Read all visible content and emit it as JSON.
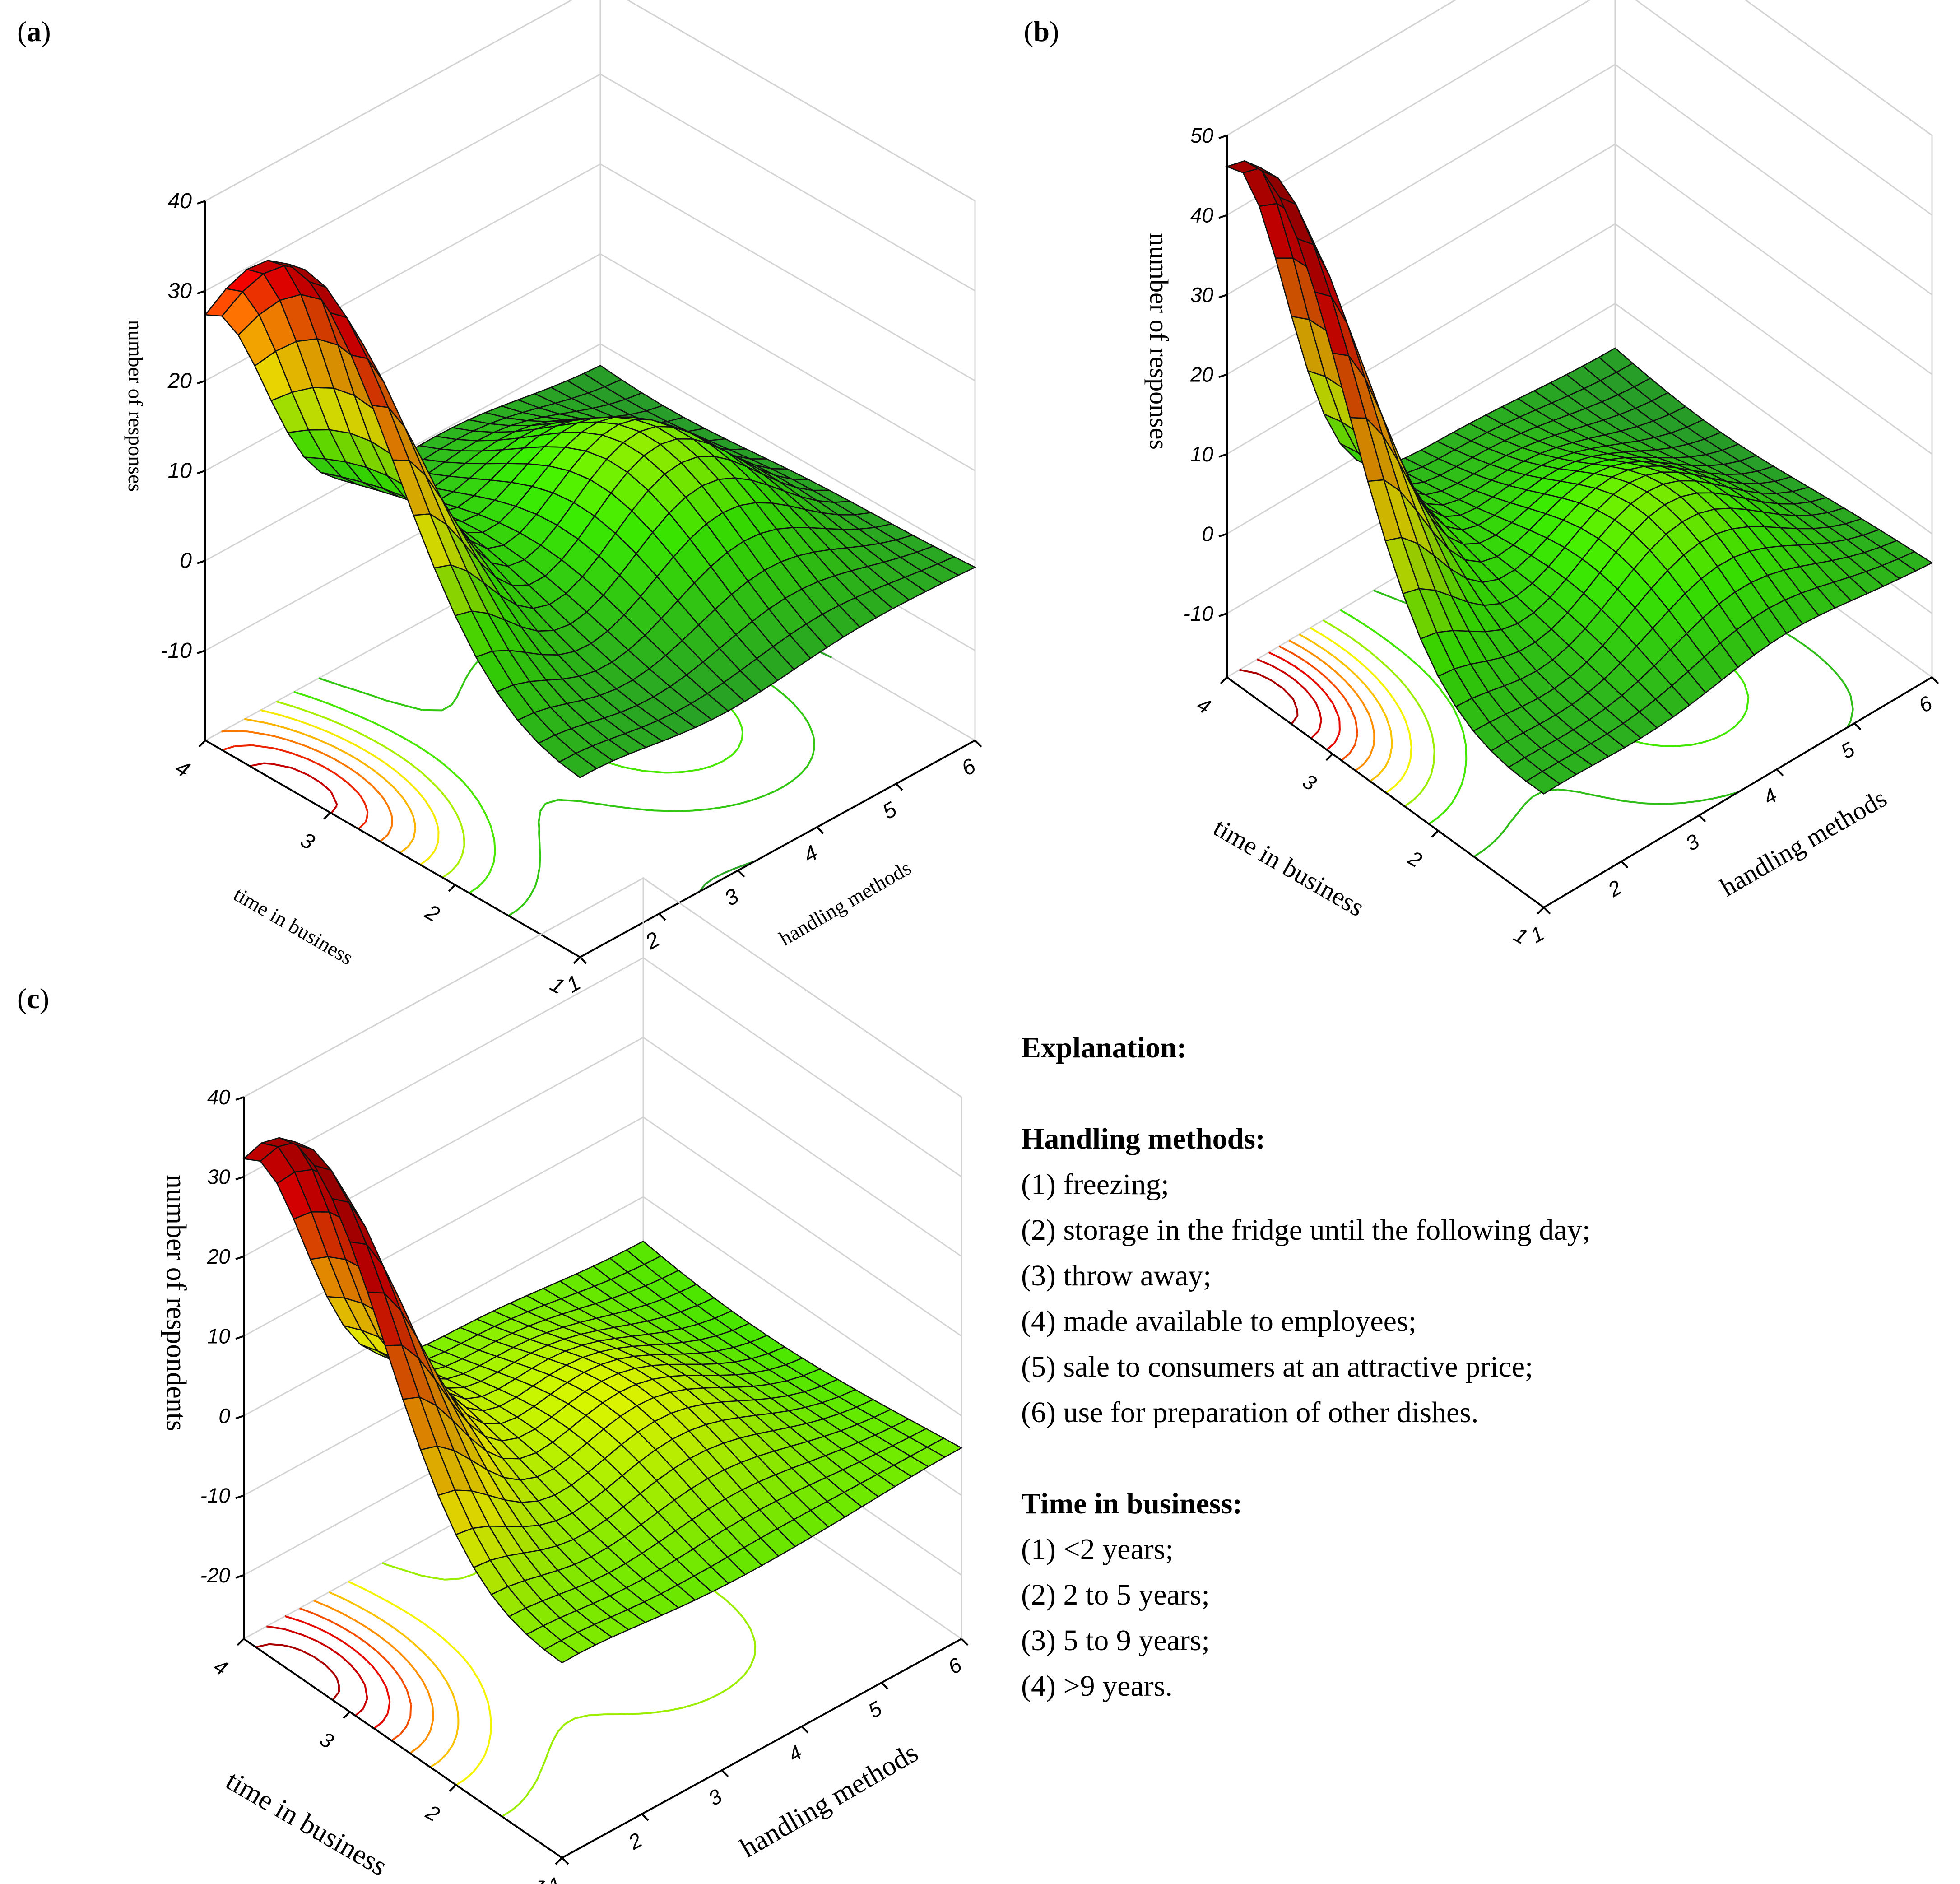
{
  "panels": [
    {
      "id": "a",
      "label_open": "(",
      "label_letter": "a",
      "label_close": ")",
      "chart_data": {
        "type": "surface3d",
        "title": "",
        "x_label": "handling methods",
        "y_label": "time in business",
        "z_label": "number of responses",
        "x_ticks": [
          "1",
          "2",
          "3",
          "4",
          "5",
          "6"
        ],
        "y_ticks": [
          "1",
          "2",
          "3",
          "4"
        ],
        "z_ticks": [
          "-10",
          "0",
          "10",
          "20",
          "30",
          "40"
        ],
        "zlim": [
          -20,
          40
        ],
        "surface_style": "muted",
        "peaks": [
          {
            "x": 1.0,
            "y": 3.3,
            "z": 40,
            "note": "main peak"
          },
          {
            "x": 4.2,
            "y": 2.4,
            "z": 10,
            "note": "secondary peak"
          },
          {
            "x": 3.0,
            "y": 3.2,
            "z": -2,
            "note": "central valley"
          }
        ],
        "base_level": -2
      }
    },
    {
      "id": "b",
      "label_open": "(",
      "label_letter": "b",
      "label_close": ")",
      "chart_data": {
        "type": "surface3d",
        "title": "",
        "x_label": "handling methods",
        "y_label": "time in business",
        "z_label": "number of responses",
        "x_ticks": [
          "1",
          "2",
          "3",
          "4",
          "5",
          "6"
        ],
        "y_ticks": [
          "1",
          "2",
          "3",
          "4"
        ],
        "z_ticks": [
          "-10",
          "0",
          "10",
          "20",
          "30",
          "40",
          "50"
        ],
        "zlim": [
          -18,
          50
        ],
        "surface_style": "bright",
        "peaks": [
          {
            "x": 1.0,
            "y": 3.7,
            "z": 50,
            "note": "main peak"
          },
          {
            "x": 4.0,
            "y": 2.0,
            "z": 5,
            "note": "secondary peak"
          }
        ],
        "base_level": -5
      }
    },
    {
      "id": "c",
      "label_open": "(",
      "label_letter": "c",
      "label_close": ")",
      "chart_data": {
        "type": "surface3d",
        "title": "",
        "x_label": "handling methods",
        "y_label": "time in business",
        "z_label": "number of respondents",
        "x_ticks": [
          "1",
          "2",
          "3",
          "4",
          "5",
          "6"
        ],
        "y_ticks": [
          "1",
          "2",
          "3",
          "4"
        ],
        "z_ticks": [
          "-20",
          "-10",
          "0",
          "10",
          "20",
          "30",
          "40"
        ],
        "zlim": [
          -28,
          40
        ],
        "surface_style": "bright",
        "peaks": [
          {
            "x": 1.0,
            "y": 3.5,
            "z": 40,
            "note": "main peak"
          },
          {
            "x": 3.8,
            "y": 2.4,
            "z": 0,
            "note": "secondary peak"
          }
        ],
        "base_level": -5
      }
    }
  ],
  "explanation": {
    "title": "Explanation:",
    "handling_title": "Handling methods:",
    "handling_items": [
      "(1) freezing;",
      "(2) storage in the fridge until the following day;",
      "(3) throw away;",
      "(4) made available to employees;",
      "(5) sale to consumers at an attractive price;",
      "(6) use for preparation of other dishes."
    ],
    "time_title": "Time in business:",
    "time_items": [
      "(1) <2 years;",
      "(2) 2 to 5 years;",
      "(3) 5 to 9 years;",
      "(4) >9 years."
    ]
  },
  "colors": {
    "grid": "#d3d3d3",
    "axis": "#000000",
    "mesh": "#111111",
    "muted_low": "#2e7d55",
    "muted_mid": "#28a028",
    "bright_green": "#39e600",
    "yellow": "#f5f500",
    "orange": "#ff8c00",
    "red": "#e60000",
    "dark_red": "#8b0000"
  }
}
